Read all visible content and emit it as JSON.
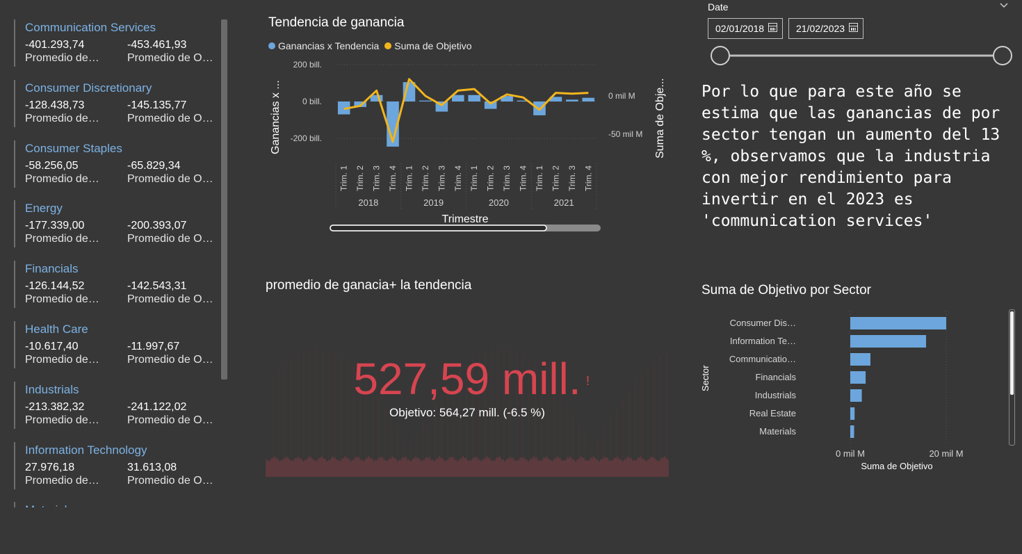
{
  "sector_cards": {
    "items": [
      {
        "name": "Communication Services",
        "value1": "-401.293,74",
        "value2": "-453.461,93",
        "label1": "Promedio de…",
        "label2": "Promedio de O…"
      },
      {
        "name": "Consumer Discretionary",
        "value1": "-128.438,73",
        "value2": "-145.135,77",
        "label1": "Promedio de…",
        "label2": "Promedio de O…"
      },
      {
        "name": "Consumer Staples",
        "value1": "-58.256,05",
        "value2": "-65.829,34",
        "label1": "Promedio de…",
        "label2": "Promedio de O…"
      },
      {
        "name": "Energy",
        "value1": "-177.339,00",
        "value2": "-200.393,07",
        "label1": "Promedio de…",
        "label2": "Promedio de O…"
      },
      {
        "name": "Financials",
        "value1": "-126.144,52",
        "value2": "-142.543,31",
        "label1": "Promedio de…",
        "label2": "Promedio de O…"
      },
      {
        "name": "Health Care",
        "value1": "-10.617,40",
        "value2": "-11.997,67",
        "label1": "Promedio de…",
        "label2": "Promedio de O…"
      },
      {
        "name": "Industrials",
        "value1": "-213.382,32",
        "value2": "-241.122,02",
        "label1": "Promedio de…",
        "label2": "Promedio de O…"
      },
      {
        "name": "Information Technology",
        "value1": "27.976,18",
        "value2": "31.613,08",
        "label1": "Promedio de…",
        "label2": "Promedio de O…"
      },
      {
        "name": "Materials",
        "value1": "",
        "value2": "",
        "label1": "",
        "label2": ""
      }
    ]
  },
  "trend_chart": {
    "title": "Tendencia de ganancia",
    "legend": [
      {
        "name": "Ganancias x Tendencia",
        "color": "#6ca6dc"
      },
      {
        "name": "Suma de Objetivo",
        "color": "#f2b51d"
      }
    ],
    "y_left_label": "Ganancias x ...",
    "y_right_label": "Suma de Obje...",
    "y_left_ticks": [
      "200 bill.",
      "0 bill.",
      "-200 bill."
    ],
    "y_right_ticks": [
      "0 mil M",
      "-50 mil M"
    ],
    "x_label": "Trimestre",
    "years": [
      "2018",
      "2019",
      "2020",
      "2021"
    ],
    "quarters": [
      "Trim. 1",
      "Trim. 2",
      "Trim. 3",
      "Trim. 4",
      "Trim. 1",
      "Trim. 2",
      "Trim. 3",
      "Trim. 4",
      "Trim. 1",
      "Trim. 2",
      "Trim. 3",
      "Trim. 4",
      "Trim. 1",
      "Trim. 2",
      "Trim. 3",
      "Trim. 4"
    ],
    "bar_values": [
      -70,
      -30,
      35,
      -245,
      105,
      5,
      -55,
      35,
      35,
      -40,
      30,
      5,
      -75,
      25,
      10,
      20
    ],
    "line_values": [
      -17,
      -13,
      7,
      -60,
      22,
      0,
      -12,
      7,
      9,
      -10,
      2,
      -2,
      -18,
      4,
      3,
      4
    ],
    "bar_range": [
      -245,
      120
    ],
    "line_range": [
      -80,
      40
    ]
  },
  "date_slicer": {
    "label": "Date",
    "start": "02/01/2018",
    "end": "21/02/2023",
    "range_fraction": [
      0,
      1
    ]
  },
  "narrative_text": "Por lo que para este año se estima que las ganancias de por sector tengan un aumento del 13 %, observamos que la industria con mejor rendimiento para invertir en el 2023 es 'communication services'",
  "kpi": {
    "title": "promedio de ganacia+ la tendencia",
    "value": "527,59 mill.",
    "alert": "!",
    "target": "Objetivo: 564,27 mill. (-6.5 %)"
  },
  "sector_bar_chart": {
    "title": "Suma de Objetivo por Sector",
    "y_label": "Sector",
    "x_label": "Suma de Objetivo",
    "categories": [
      "Consumer Dis…",
      "Information Te…",
      "Communicatio…",
      "Financials",
      "Industrials",
      "Real Estate",
      "Materials"
    ],
    "values": [
      20,
      15.8,
      4.2,
      3.2,
      2.4,
      0.9,
      0.8
    ],
    "x_ticks": [
      "0 mil M",
      "20 mil M"
    ],
    "xlim": [
      0,
      20
    ],
    "color": "#6ca6dc"
  },
  "chart_data": [
    {
      "type": "bar",
      "title": "Tendencia de ganancia",
      "categories": [
        "2018 Trim. 1",
        "2018 Trim. 2",
        "2018 Trim. 3",
        "2018 Trim. 4",
        "2019 Trim. 1",
        "2019 Trim. 2",
        "2019 Trim. 3",
        "2019 Trim. 4",
        "2020 Trim. 1",
        "2020 Trim. 2",
        "2020 Trim. 3",
        "2020 Trim. 4",
        "2021 Trim. 1",
        "2021 Trim. 2",
        "2021 Trim. 3",
        "2021 Trim. 4"
      ],
      "series": [
        {
          "name": "Ganancias x Tendencia",
          "values": [
            -70,
            -30,
            35,
            -245,
            105,
            5,
            -55,
            35,
            35,
            -40,
            30,
            5,
            -75,
            25,
            10,
            20
          ]
        },
        {
          "name": "Suma de Objetivo",
          "values": [
            -17,
            -13,
            7,
            -60,
            22,
            0,
            -12,
            7,
            9,
            -10,
            2,
            -2,
            -18,
            4,
            3,
            4
          ]
        }
      ],
      "xlabel": "Trimestre",
      "ylabel": "Ganancias x ..."
    },
    {
      "type": "bar",
      "title": "Suma de Objetivo por Sector",
      "categories": [
        "Consumer Dis…",
        "Information Te…",
        "Communicatio…",
        "Financials",
        "Industrials",
        "Real Estate",
        "Materials"
      ],
      "values": [
        20,
        15.8,
        4.2,
        3.2,
        2.4,
        0.9,
        0.8
      ],
      "xlabel": "Suma de Objetivo",
      "ylabel": "Sector",
      "xlim": [
        0,
        20
      ]
    }
  ]
}
